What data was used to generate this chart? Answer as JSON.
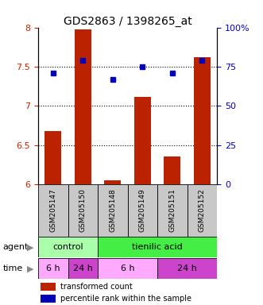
{
  "title": "GDS2863 / 1398265_at",
  "samples": [
    "GSM205147",
    "GSM205150",
    "GSM205148",
    "GSM205149",
    "GSM205151",
    "GSM205152"
  ],
  "bar_values": [
    6.68,
    7.98,
    6.05,
    7.12,
    6.36,
    7.62
  ],
  "bar_bottom": 6.0,
  "percentile_values": [
    71,
    79,
    67,
    75,
    71,
    79
  ],
  "ylim_left": [
    6.0,
    8.0
  ],
  "ylim_right": [
    0,
    100
  ],
  "yticks_left": [
    6.0,
    6.5,
    7.0,
    7.5,
    8.0
  ],
  "yticks_right": [
    0,
    25,
    50,
    75,
    100
  ],
  "bar_color": "#BB2200",
  "dot_color": "#0000BB",
  "agent_groups": [
    {
      "label": "control",
      "start": 0,
      "end": 2,
      "color": "#AAFFAA"
    },
    {
      "label": "tienilic acid",
      "start": 2,
      "end": 6,
      "color": "#44EE44"
    }
  ],
  "time_groups": [
    {
      "label": "6 h",
      "start": 0,
      "end": 1,
      "color": "#FFAAFF"
    },
    {
      "label": "24 h",
      "start": 1,
      "end": 2,
      "color": "#CC44CC"
    },
    {
      "label": "6 h",
      "start": 2,
      "end": 4,
      "color": "#FFAAFF"
    },
    {
      "label": "24 h",
      "start": 4,
      "end": 6,
      "color": "#CC44CC"
    }
  ],
  "ylabel_left_color": "#CC2200",
  "ylabel_right_color": "#0000CC",
  "background_sample": "#C8C8C8",
  "grid_lines": [
    6.5,
    7.0,
    7.5
  ],
  "ytick_label_map": {
    "6.0": "6",
    "6.5": "6.5",
    "7.0": "7",
    "7.5": "7.5",
    "8.0": "8"
  }
}
